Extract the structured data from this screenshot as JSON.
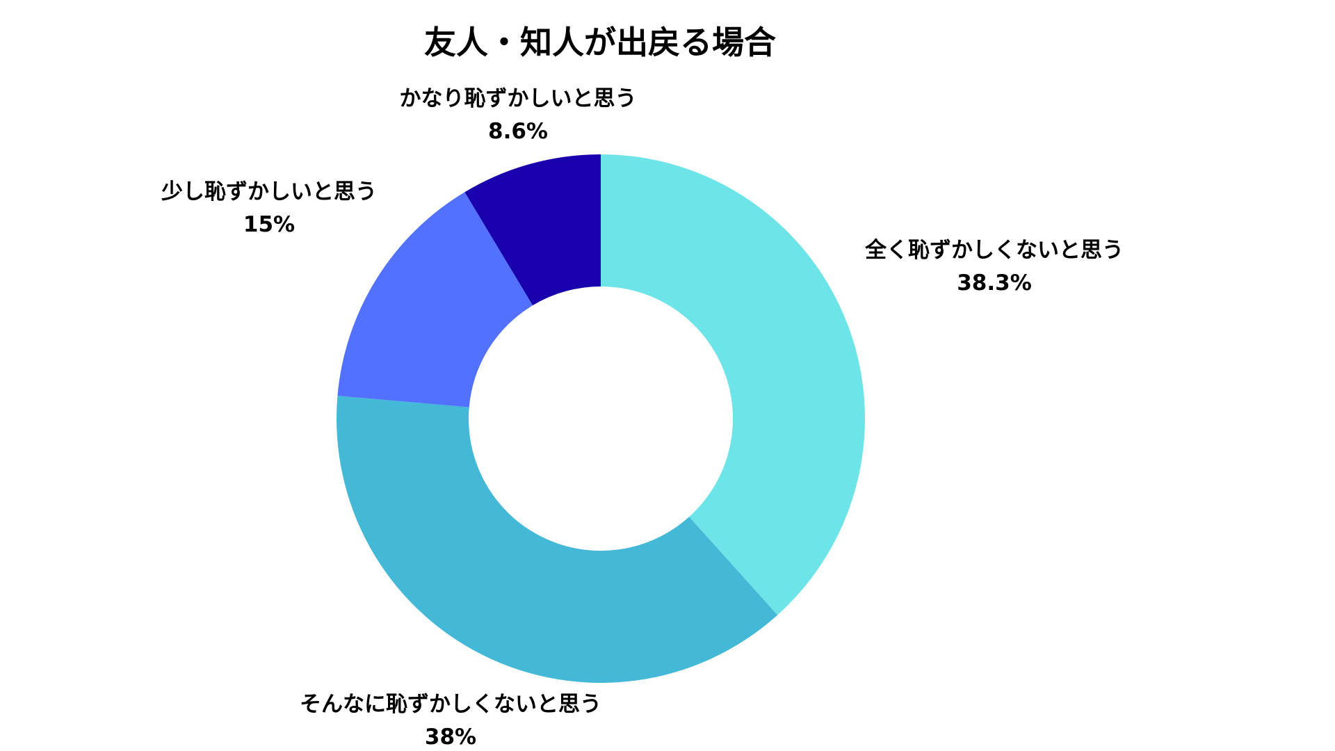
{
  "chart_data": {
    "type": "pie",
    "title": "友人・知人が出戻る場合",
    "donut": true,
    "start_angle": "12 o'clock",
    "direction": "clockwise",
    "slices": [
      {
        "label": "全く恥ずかしくないと思う",
        "value": 38.3,
        "value_label": "38.3%",
        "color": "#6ce4e8"
      },
      {
        "label": "そんなに恥ずかしくないと思う",
        "value": 38,
        "value_label": "38%",
        "color": "#44b8d7"
      },
      {
        "label": "少し恥ずかしいと思う",
        "value": 15,
        "value_label": "15%",
        "color": "#5271ff"
      },
      {
        "label": "かなり恥ずかしいと思う",
        "value": 8.6,
        "value_label": "8.6%",
        "color": "#1800ad"
      }
    ]
  }
}
